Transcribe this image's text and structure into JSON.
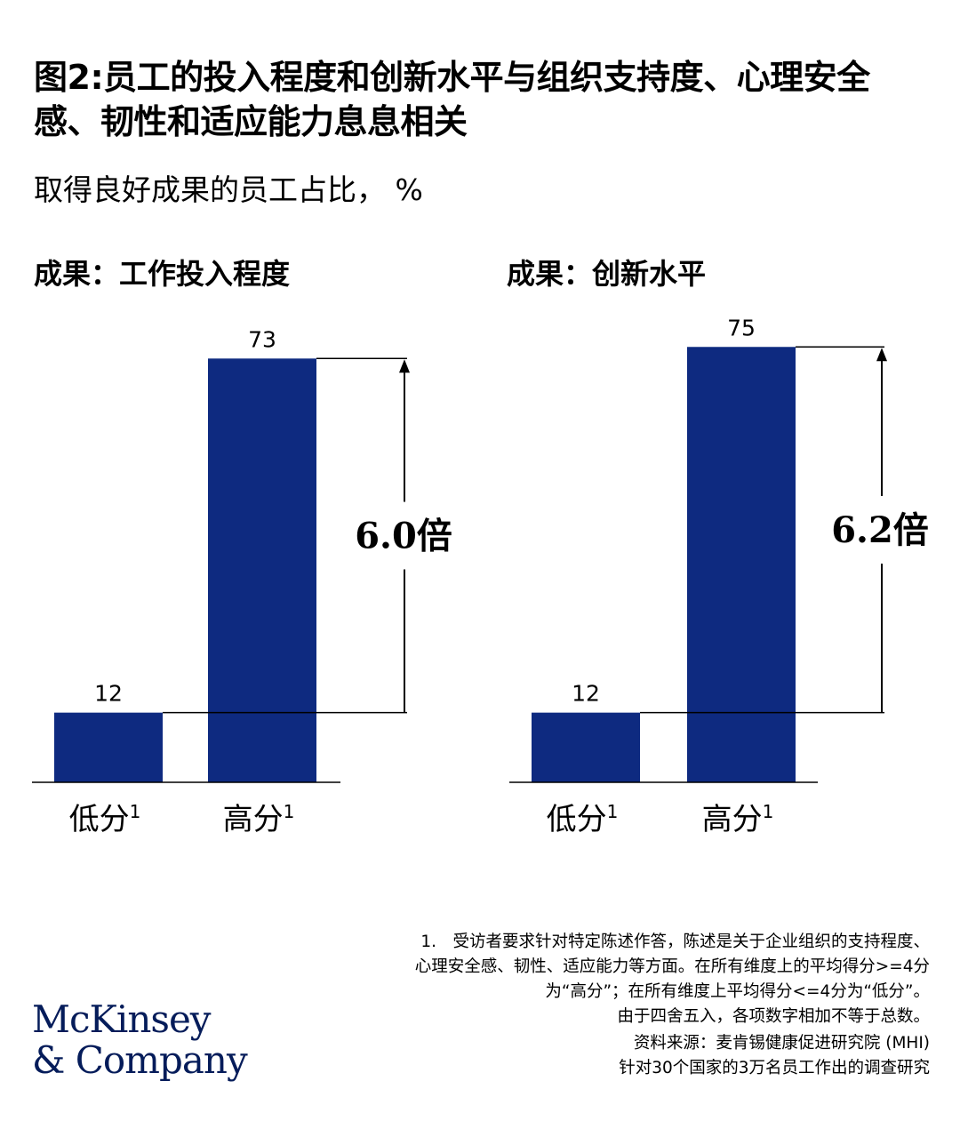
{
  "title": "图2:员工的投入程度和创新水平与组织支持度、心理安全感、韧性和适应能力息息相关",
  "subtitle": "取得良好成果的员工占比， %",
  "colors": {
    "bar": "#0e2a80",
    "text": "#000000",
    "logo": "#051c5a"
  },
  "chart_data": [
    {
      "type": "bar",
      "title": "成果：工作投入程度",
      "categories": [
        "低分",
        "高分"
      ],
      "category_superscript": "1",
      "values": [
        12,
        73
      ],
      "multiplier_label": "6.0倍"
    },
    {
      "type": "bar",
      "title": "成果：创新水平",
      "categories": [
        "低分",
        "高分"
      ],
      "category_superscript": "1",
      "values": [
        12,
        75
      ],
      "multiplier_label": "6.2倍"
    }
  ],
  "footnote": {
    "lines": [
      "1.　受访者要求针对特定陈述作答，陈述是关于企业组织的支持程度、",
      "心理安全感、韧性、适应能力等方面。在所有维度上的平均得分>=4分",
      "为“高分”；在所有维度上平均得分<=4分为“低分”。",
      "由于四舍五入，各项数字相加不等于总数。"
    ]
  },
  "source": {
    "lines": [
      "资料来源：麦肯锡健康促进研究院 (MHI)",
      "针对30个国家的3万名员工作出的调查研究"
    ]
  },
  "logo": {
    "line1": "McKinsey",
    "line2": "& Company"
  }
}
